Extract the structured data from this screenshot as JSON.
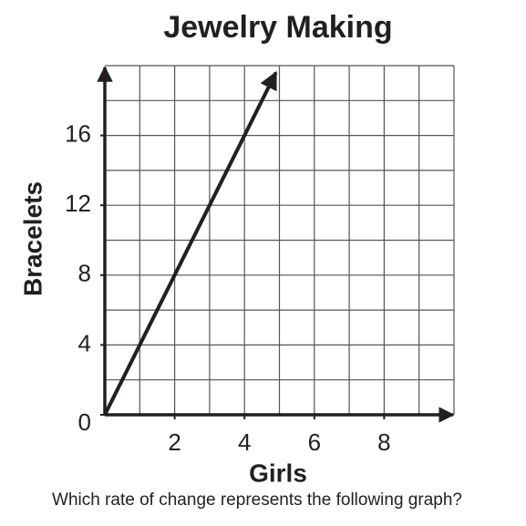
{
  "chart_data": {
    "type": "line",
    "title": "Jewelry Making",
    "xlabel": "Girls",
    "ylabel": "Bracelets",
    "x": [
      0,
      4.9
    ],
    "series": [
      {
        "color": "#231f20",
        "values": [
          0,
          19.6
        ]
      }
    ],
    "xlim": [
      0,
      10
    ],
    "ylim": [
      0,
      20
    ],
    "xticks": [
      2,
      4,
      6,
      8
    ],
    "yticks": [
      0,
      4,
      8,
      12,
      16
    ],
    "xgrid": [
      1,
      2,
      3,
      4,
      5,
      6,
      7,
      8,
      9,
      10
    ],
    "ygrid": [
      2,
      4,
      6,
      8,
      10,
      12,
      14,
      16,
      18,
      20
    ],
    "grid": true
  },
  "question": "Which rate of change represents the following graph?"
}
